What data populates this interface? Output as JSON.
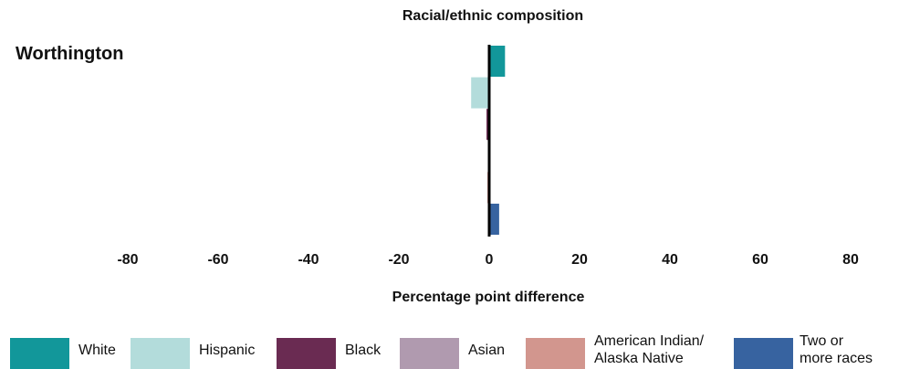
{
  "chart_data": {
    "type": "bar",
    "orientation": "horizontal",
    "title": "Racial/ethnic composition",
    "group_label": "Worthington",
    "xlabel": "Percentage point difference",
    "xlim": [
      -80,
      80
    ],
    "xticks": [
      "-80",
      "-60",
      "-40",
      "-20",
      "0",
      "20",
      "40",
      "60",
      "80"
    ],
    "grid": false,
    "legend_position": "bottom",
    "categories": [
      "White",
      "Hispanic",
      "Black",
      "Asian",
      "American Indian/ Alaska Native",
      "Two or more races"
    ],
    "values": [
      3.5,
      -4.0,
      -0.6,
      0.0,
      -0.4,
      2.2
    ],
    "colors": [
      "#12979a",
      "#b3dcdb",
      "#6a2b52",
      "#b09aaf",
      "#d2968e",
      "#3763a0"
    ]
  },
  "legend": [
    {
      "label_lines": [
        "White"
      ],
      "color": "#12979a"
    },
    {
      "label_lines": [
        "Hispanic"
      ],
      "color": "#b3dcdb"
    },
    {
      "label_lines": [
        "Black"
      ],
      "color": "#6a2b52"
    },
    {
      "label_lines": [
        "Asian"
      ],
      "color": "#b09aaf"
    },
    {
      "label_lines": [
        "American Indian/",
        "Alaska Native"
      ],
      "color": "#d2968e"
    },
    {
      "label_lines": [
        "Two or",
        "more races"
      ],
      "color": "#3763a0"
    }
  ]
}
